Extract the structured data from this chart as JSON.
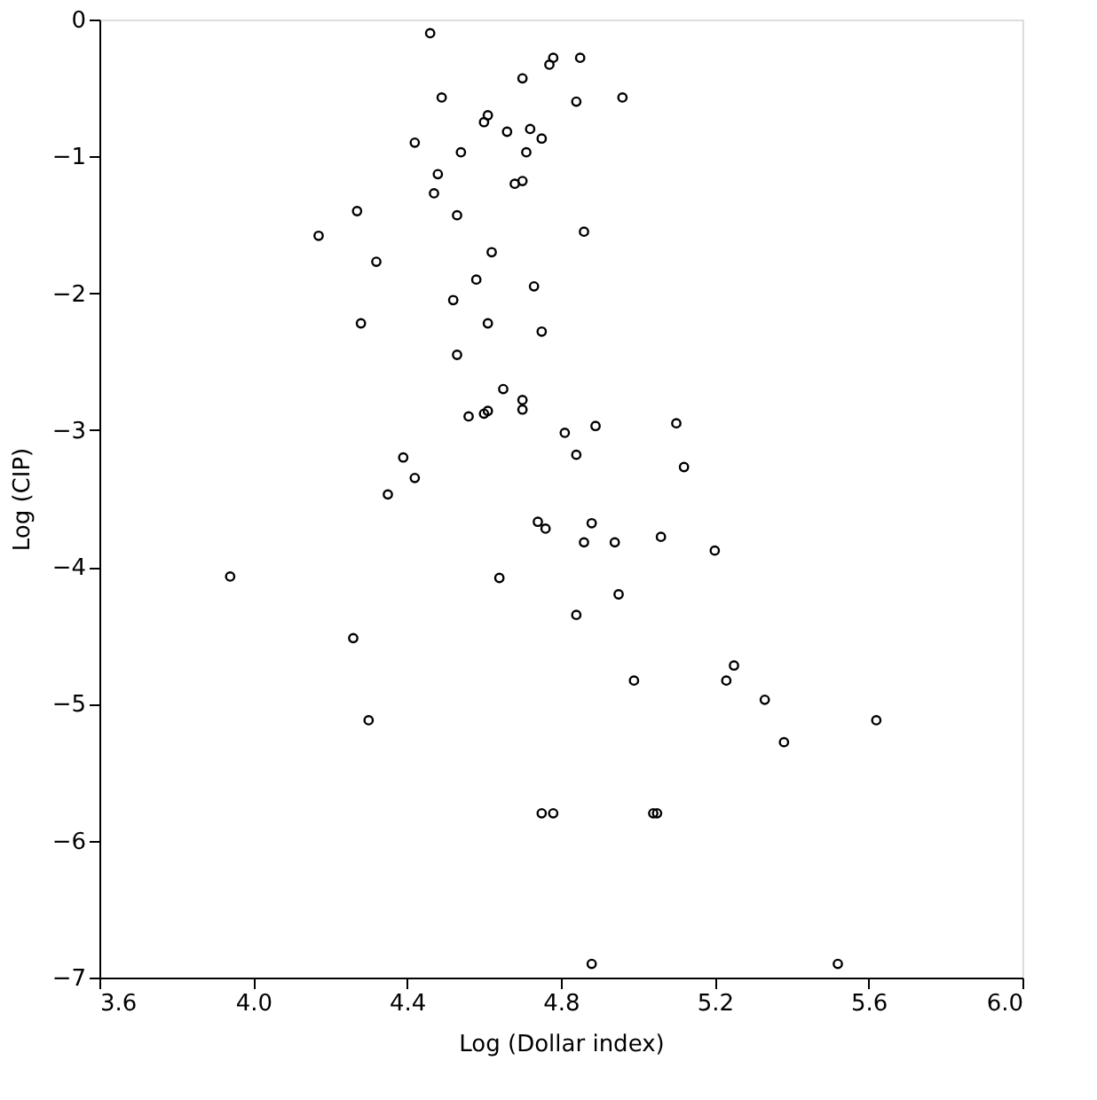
{
  "chart_data": {
    "type": "scatter",
    "xlabel": "Log (Dollar index)",
    "ylabel": "Log (CIP)",
    "marker": "circle",
    "grid": false,
    "xlim": [
      3.6,
      6.0
    ],
    "xticks": [
      {
        "value": 3.6,
        "label": "3.6"
      },
      {
        "value": 4.0,
        "label": "4.0"
      },
      {
        "value": 4.4,
        "label": "4.4"
      },
      {
        "value": 4.8,
        "label": "4.8"
      },
      {
        "value": 5.2,
        "label": "5.2"
      },
      {
        "value": 5.6,
        "label": "5.6"
      },
      {
        "value": 6.0,
        "label": "6.0"
      }
    ],
    "ylim": [
      -7,
      0
    ],
    "yticks": [
      -7,
      -6,
      -5,
      -4,
      -3,
      -2,
      -1,
      0
    ],
    "series": [
      {
        "color": "#000000",
        "x": [
          4.46,
          4.78,
          4.77,
          4.85,
          4.84,
          4.96,
          4.49,
          4.7,
          4.6,
          4.61,
          4.66,
          4.72,
          4.75,
          4.71,
          4.54,
          4.42,
          4.48,
          4.68,
          4.7,
          4.47,
          4.53,
          4.27,
          4.17,
          4.32,
          4.86,
          4.62,
          4.58,
          4.73,
          4.52,
          4.28,
          4.61,
          4.75,
          4.53,
          4.65,
          4.56,
          4.6,
          4.61,
          4.7,
          4.7,
          4.81,
          4.89,
          5.1,
          4.84,
          5.12,
          4.39,
          4.42,
          4.35,
          3.94,
          4.64,
          4.74,
          4.76,
          4.88,
          4.86,
          4.94,
          5.06,
          5.2,
          4.95,
          4.84,
          4.26,
          4.3,
          4.99,
          5.25,
          5.23,
          5.33,
          5.38,
          5.62,
          4.75,
          4.78,
          5.04,
          5.05,
          4.88,
          5.52
        ],
        "values": [
          -0.1,
          -0.28,
          -0.33,
          -0.28,
          -0.6,
          -0.57,
          -0.57,
          -0.43,
          -0.75,
          -0.7,
          -0.82,
          -0.8,
          -0.87,
          -0.97,
          -0.97,
          -0.9,
          -1.13,
          -1.2,
          -1.18,
          -1.27,
          -1.43,
          -1.4,
          -1.58,
          -1.77,
          -1.55,
          -1.7,
          -1.9,
          -1.95,
          -2.05,
          -2.22,
          -2.22,
          -2.28,
          -2.45,
          -2.7,
          -2.9,
          -2.88,
          -2.86,
          -2.78,
          -2.85,
          -3.02,
          -2.97,
          -2.95,
          -3.18,
          -3.27,
          -3.2,
          -3.35,
          -3.47,
          -4.07,
          -4.08,
          -3.67,
          -3.72,
          -3.68,
          -3.82,
          -3.82,
          -3.78,
          -3.88,
          -4.2,
          -4.35,
          -4.52,
          -5.12,
          -4.83,
          -4.72,
          -4.83,
          -4.97,
          -5.28,
          -5.12,
          -5.8,
          -5.8,
          -5.8,
          -5.8,
          -6.9,
          -6.9
        ]
      }
    ]
  }
}
